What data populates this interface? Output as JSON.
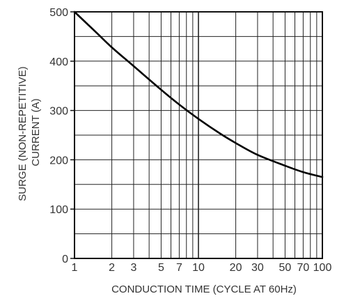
{
  "chart_data": {
    "type": "line",
    "x_scale": "log",
    "xlim": [
      1,
      100
    ],
    "ylim": [
      0,
      500
    ],
    "xlabel": "CONDUCTION TIME (CYCLE AT 60Hz)",
    "ylabel_lines": [
      "SURGE (NON-REPETITIVE)",
      "CURRENT (A)"
    ],
    "x_ticks": [
      {
        "value": 1,
        "label": "1"
      },
      {
        "value": 2,
        "label": "2"
      },
      {
        "value": 3,
        "label": "3"
      },
      {
        "value": 5,
        "label": "5"
      },
      {
        "value": 7,
        "label": "7"
      },
      {
        "value": 10,
        "label": "10"
      },
      {
        "value": 20,
        "label": "20"
      },
      {
        "value": 30,
        "label": "30"
      },
      {
        "value": 50,
        "label": "50"
      },
      {
        "value": 70,
        "label": "70"
      },
      {
        "value": 100,
        "label": "100"
      }
    ],
    "x_gridlines": [
      2,
      3,
      4,
      5,
      6,
      7,
      8,
      9,
      10,
      20,
      30,
      40,
      50,
      60,
      70,
      80,
      90
    ],
    "y_ticks": [
      {
        "value": 0,
        "label": "0"
      },
      {
        "value": 100,
        "label": "100"
      },
      {
        "value": 200,
        "label": "200"
      },
      {
        "value": 300,
        "label": "300"
      },
      {
        "value": 400,
        "label": "400"
      },
      {
        "value": 500,
        "label": "500"
      }
    ],
    "y_gridlines": [
      50,
      100,
      150,
      200,
      250,
      300,
      350,
      400,
      450
    ],
    "grid": true,
    "series": [
      {
        "x": [
          1,
          1.5,
          2,
          3,
          5,
          7,
          10,
          15,
          20,
          30,
          50,
          70,
          100
        ],
        "y": [
          500,
          458,
          428,
          390,
          342,
          312,
          283,
          253,
          234,
          210,
          188,
          175,
          165
        ]
      }
    ]
  }
}
